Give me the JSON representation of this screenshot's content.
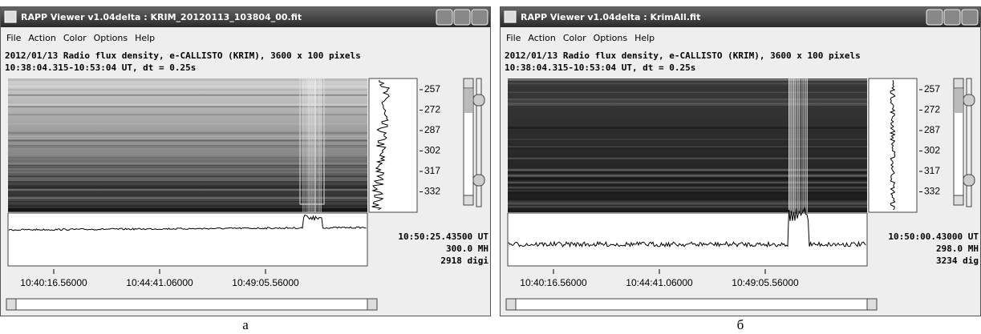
{
  "windows": [
    {
      "title": "RAPP Viewer v1.04delta : KRIM_20120113_103804_00.fit",
      "menu": [
        "File",
        "Action",
        "Color",
        "Options",
        "Help"
      ],
      "info": [
        "2012/01/13  Radio flux density, e-CALLISTO (KRIM),  3600 x 100 pixels",
        "10:38:04.315-10:53:04 UT,  dt = 0.25s"
      ],
      "y_ticks": [
        "257",
        "272",
        "287",
        "302",
        "317",
        "332"
      ],
      "cursor": [
        "10:50:25.43500 UT",
        "300.0 MH",
        "2918 digi"
      ],
      "x_ticks": [
        "10:40:16.56000",
        "10:44:41.06000",
        "10:49:05.56000"
      ],
      "caption": "а"
    },
    {
      "title": "RAPP Viewer v1.04delta : KrimAll.fit",
      "menu": [
        "File",
        "Action",
        "Color",
        "Options",
        "Help"
      ],
      "info": [
        "2012/01/13  Radio flux density, e-CALLISTO (KRIM),  3600 x 100 pixels",
        "10:38:04.315-10:53:04 UT,  dt = 0.25s"
      ],
      "y_ticks": [
        "257",
        "272",
        "287",
        "302",
        "317",
        "332"
      ],
      "cursor": [
        "10:50:00.43000 UT",
        "298.0 MH",
        "3234 dig"
      ],
      "x_ticks": [
        "10:40:16.56000",
        "10:44:41.06000",
        "10:49:05.56000"
      ],
      "caption": "б"
    }
  ]
}
